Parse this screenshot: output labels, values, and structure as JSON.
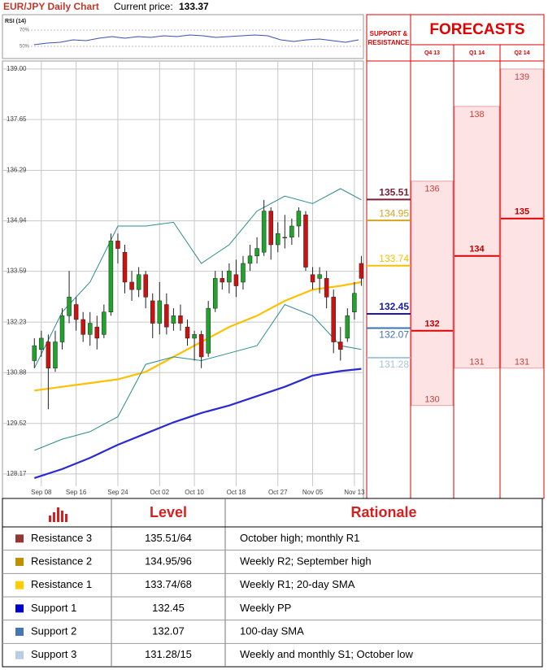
{
  "header": {
    "title": "EUR/JPY Daily Chart",
    "price_label": "Current price:",
    "price": 133.37
  },
  "chart_data": [
    {
      "type": "line",
      "title": "RSI (14)",
      "color": "#3a4fb5",
      "grid": true,
      "values": [
        52,
        54,
        55,
        58,
        57,
        60,
        62,
        60,
        62,
        61,
        63,
        62,
        64,
        63,
        61,
        62,
        63,
        64,
        63,
        58,
        56,
        58,
        59,
        57,
        55,
        58
      ],
      "ylim": [
        35,
        87
      ],
      "yticks": [
        {
          "value": 70,
          "label": "70%"
        },
        {
          "value": 50,
          "label": "50%"
        }
      ]
    },
    {
      "type": "candlestick",
      "up_color": "#1fa32a",
      "down_color": "#cc1111",
      "grid": true,
      "ylim": [
        127.84,
        139.15
      ],
      "yticks": [
        {
          "value": 139,
          "label": "139.00"
        },
        137.65,
        136.29,
        134.94,
        133.59,
        132.23,
        130.88,
        129.52,
        128.17
      ],
      "xlim": [
        -0.5,
        47.3
      ],
      "xticks": [
        {
          "value": 1,
          "label": "Sep 08"
        },
        {
          "value": 6,
          "label": "Sep 16"
        },
        {
          "value": 12,
          "label": "Sep 24"
        },
        {
          "value": 18,
          "label": "Oct 02"
        },
        {
          "value": 23,
          "label": "Oct 10"
        },
        {
          "value": 29,
          "label": "Oct 18"
        },
        {
          "value": 35,
          "label": "Oct 27"
        },
        {
          "value": 40,
          "label": "Nov 05"
        },
        {
          "value": 46,
          "label": "Nov 13"
        }
      ],
      "candles": {
        "open": [
          131.2,
          131.5,
          131.7,
          131.0,
          131.7,
          132.4,
          132.7,
          132.3,
          131.9,
          132.1,
          131.9,
          132.5,
          134.4,
          134.1,
          133.3,
          133.1,
          133.5,
          132.8,
          132.2,
          132.7,
          132.2,
          132.4,
          132.1,
          131.8,
          131.9,
          131.4,
          132.6,
          133.4,
          133.3,
          133.5,
          133.3,
          133.8,
          134.0,
          134.1,
          135.2,
          134.3,
          134.5,
          134.5,
          134.8,
          135.1,
          133.5,
          133.4,
          133.4,
          132.9,
          131.7,
          131.8,
          132.5,
          133.8
        ],
        "high": [
          131.8,
          132.0,
          131.9,
          132.0,
          132.6,
          133.6,
          132.9,
          132.5,
          132.5,
          132.4,
          132.7,
          134.6,
          134.6,
          134.3,
          133.6,
          133.7,
          133.6,
          133.0,
          133.3,
          133.0,
          132.6,
          132.7,
          132.3,
          132.0,
          132.0,
          132.8,
          133.6,
          133.6,
          133.8,
          133.9,
          134.0,
          134.3,
          134.5,
          135.5,
          135.3,
          134.9,
          135.1,
          135.0,
          135.3,
          135.2,
          133.7,
          133.7,
          133.6,
          133.1,
          132.1,
          132.6,
          133.3,
          134.0
        ],
        "low": [
          131.0,
          131.3,
          129.9,
          130.9,
          131.5,
          132.2,
          132.0,
          131.7,
          131.6,
          131.5,
          131.8,
          132.4,
          133.8,
          133.0,
          132.8,
          132.9,
          132.6,
          131.8,
          131.9,
          131.9,
          132.0,
          132.0,
          131.6,
          131.2,
          131.0,
          131.3,
          132.5,
          133.1,
          133.0,
          132.9,
          133.1,
          133.6,
          133.8,
          134.0,
          133.9,
          134.1,
          134.2,
          134.3,
          134.5,
          133.6,
          133.1,
          133.0,
          132.6,
          131.4,
          131.2,
          131.7,
          132.3,
          133.2
        ],
        "close": [
          131.6,
          131.8,
          131.0,
          131.7,
          132.4,
          132.9,
          132.3,
          131.9,
          132.2,
          131.8,
          132.5,
          134.4,
          134.2,
          133.3,
          133.1,
          133.5,
          132.9,
          132.2,
          132.8,
          132.1,
          132.4,
          132.2,
          131.8,
          131.9,
          131.3,
          132.6,
          133.4,
          133.3,
          133.6,
          133.2,
          133.8,
          134.0,
          134.2,
          135.2,
          134.3,
          134.6,
          134.5,
          134.8,
          135.2,
          133.7,
          133.3,
          133.5,
          132.9,
          131.7,
          131.5,
          132.4,
          133.0,
          133.4
        ]
      },
      "lines": [
        {
          "color": "#ffc000",
          "x": [
            0,
            4,
            8,
            12,
            16,
            20,
            24,
            28,
            32,
            36,
            40,
            44,
            47
          ],
          "values": [
            130.4,
            130.5,
            130.6,
            130.7,
            130.9,
            131.3,
            131.7,
            132.1,
            132.4,
            132.8,
            133.1,
            133.2,
            133.3
          ]
        },
        {
          "color": "#2a2ad0",
          "x": [
            0,
            4,
            8,
            12,
            16,
            20,
            24,
            28,
            32,
            36,
            40,
            44,
            47
          ],
          "values": [
            128.06,
            128.3,
            128.6,
            128.95,
            129.25,
            129.55,
            129.8,
            130.0,
            130.25,
            130.5,
            130.8,
            130.92,
            130.98
          ]
        },
        {
          "color": "#2e8b8b",
          "x": [
            0,
            4,
            8,
            12,
            16,
            20,
            24,
            28,
            32,
            36,
            40,
            44,
            47
          ],
          "values": [
            131.0,
            132.5,
            133.3,
            134.8,
            134.8,
            134.9,
            133.8,
            134.3,
            135.2,
            135.6,
            135.4,
            135.8,
            135.5
          ]
        },
        {
          "color": "#2e8b8b",
          "x": [
            0,
            4,
            8,
            12,
            16,
            20,
            24,
            28,
            32,
            36,
            40,
            44,
            47
          ],
          "values": [
            128.8,
            129.1,
            129.3,
            129.7,
            131.1,
            131.3,
            131.2,
            131.4,
            131.6,
            132.7,
            132.4,
            131.6,
            131.5
          ]
        }
      ]
    }
  ],
  "forecast_panel": {
    "sr_header": [
      "SUPPORT &",
      "RESISTANCE"
    ],
    "title": "FORECASTS",
    "levels": [
      {
        "value": 135.51,
        "color": "#7b1f33"
      },
      {
        "value": 134.95,
        "color": "#d4a420"
      },
      {
        "value": 133.74,
        "color": "#f5c000"
      },
      {
        "value": 132.45,
        "color": "#1a1ab0"
      },
      {
        "value": 132.07,
        "color": "#3d73b0"
      },
      {
        "value": 131.28,
        "color": "#a6c4dc"
      }
    ],
    "quarters": [
      {
        "name": "Q4 13",
        "high": 136,
        "forecast": 132,
        "low": 130
      },
      {
        "name": "Q1 14",
        "high": 138,
        "forecast": 134,
        "low": 131
      },
      {
        "name": "Q2 14",
        "high": 139,
        "forecast": 135,
        "low": 131
      }
    ]
  },
  "table": {
    "columns": [
      "Level",
      "Rationale"
    ],
    "rows": [
      {
        "label": "Resistance 3",
        "color": "#943634",
        "level": "135.51/64",
        "rationale": "October high; monthly R1"
      },
      {
        "label": "Resistance 2",
        "color": "#c09000",
        "level": "134.95/96",
        "rationale": "Weekly R2; September high"
      },
      {
        "label": "Resistance 1",
        "color": "#ffcc00",
        "level": "133.74/68",
        "rationale": "Weekly R1; 20-day SMA"
      },
      {
        "label": "Support 1",
        "color": "#0000cc",
        "level": "132.45",
        "rationale": "Weekly PP"
      },
      {
        "label": "Support 2",
        "color": "#4677b3",
        "level": "132.07",
        "rationale": "100-day SMA"
      },
      {
        "label": "Support 3",
        "color": "#b8cce4",
        "level": "131.28/15",
        "rationale": "Weekly and monthly S1; October low"
      }
    ]
  }
}
